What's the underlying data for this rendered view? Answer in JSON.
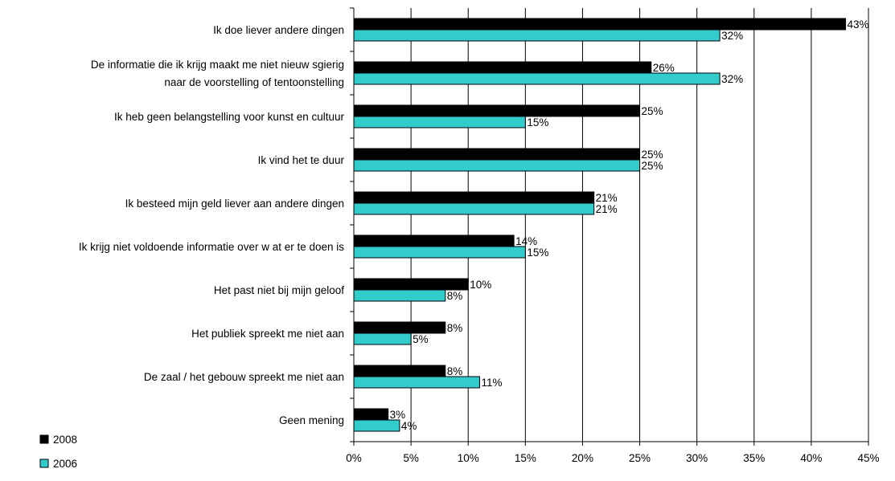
{
  "chart_data": {
    "type": "bar",
    "orientation": "horizontal",
    "title": "",
    "xlabel": "",
    "ylabel": "",
    "xlim": [
      0,
      45
    ],
    "x_ticks": [
      "0%",
      "5%",
      "10%",
      "15%",
      "20%",
      "25%",
      "30%",
      "35%",
      "40%",
      "45%"
    ],
    "value_suffix": "%",
    "grid": "vertical",
    "legend": "bottom-left",
    "categories": [
      [
        "Ik doe liever andere dingen"
      ],
      [
        "De informatie die ik krijg maakt me niet nieuw sgierig",
        "naar de voorstelling of tentoonstelling"
      ],
      [
        "Ik heb geen belangstelling voor kunst en cultuur"
      ],
      [
        "Ik vind het te duur"
      ],
      [
        "Ik besteed mijn geld liever aan andere dingen"
      ],
      [
        "Ik krijg niet voldoende informatie over w at er te doen is"
      ],
      [
        "Het past niet bij mijn geloof"
      ],
      [
        "Het publiek spreekt me niet aan"
      ],
      [
        "De zaal / het gebouw  spreekt me niet aan"
      ],
      [
        "Geen mening"
      ]
    ],
    "series": [
      {
        "name": "2008",
        "color": "#000000",
        "values": [
          43,
          26,
          25,
          25,
          21,
          14,
          10,
          8,
          8,
          3
        ]
      },
      {
        "name": "2006",
        "color": "#33CCCC",
        "values": [
          32,
          32,
          15,
          25,
          21,
          15,
          8,
          5,
          11,
          4
        ]
      }
    ]
  }
}
